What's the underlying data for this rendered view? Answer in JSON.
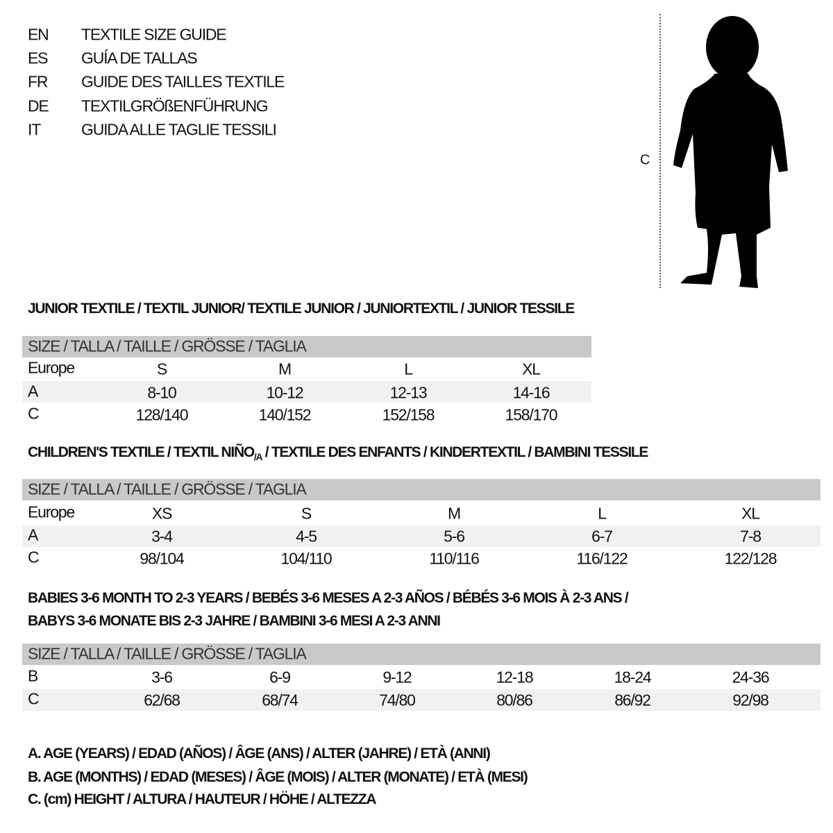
{
  "languages": [
    {
      "code": "EN",
      "title": "TEXTILE SIZE GUIDE"
    },
    {
      "code": "ES",
      "title": "GUÍA DE TALLAS"
    },
    {
      "code": "FR",
      "title": "GUIDE DES TAILLES TEXTILE"
    },
    {
      "code": "DE",
      "title": "TEXTILGRÖßENFÜHRUNG"
    },
    {
      "code": "IT",
      "title": "GUIDA ALLE TAGLIE TESSILI"
    }
  ],
  "figure": {
    "label": "C"
  },
  "junior": {
    "title": "JUNIOR TEXTILE / TEXTIL JUNIOR/ TEXTILE JUNIOR / JUNIORTEXTIL / JUNIOR TESSILE",
    "header": "SIZE / TALLA / TAILLE / GRÖSSE / TAGLIA",
    "rows": [
      {
        "label": "Europe",
        "values": [
          "S",
          "M",
          "L",
          "XL"
        ]
      },
      {
        "label": "A",
        "values": [
          "8-10",
          "10-12",
          "12-13",
          "14-16"
        ]
      },
      {
        "label": "C",
        "values": [
          "128/140",
          "140/152",
          "152/158",
          "158/170"
        ]
      }
    ]
  },
  "children": {
    "title_main": "CHILDREN'S TEXTILE / TEXTIL NIÑO",
    "title_sub": "/A",
    "title_rest": " / TEXTILE DES ENFANTS / KINDERTEXTIL / BAMBINI TESSILE",
    "header": "SIZE / TALLA / TAILLE / GRÖSSE / TAGLIA",
    "rows": [
      {
        "label": "Europe",
        "values": [
          "XS",
          "S",
          "M",
          "L",
          "XL"
        ]
      },
      {
        "label": "A",
        "values": [
          "3-4",
          "4-5",
          "5-6",
          "6-7",
          "7-8"
        ]
      },
      {
        "label": "C",
        "values": [
          "98/104",
          "104/110",
          "110/116",
          "116/122",
          "122/128"
        ]
      }
    ]
  },
  "babies": {
    "title_line1": "BABIES 3-6 MONTH TO 2-3 YEARS / BEBÉS 3-6 MESES A 2-3 AÑOS / BÉBÉS 3-6 MOIS À 2-3 ANS /",
    "title_line2": "BABYS 3-6 MONATE BIS 2-3 JAHRE / BAMBINI 3-6 MESI A 2-3 ANNI",
    "header": "SIZE / TALLA / TAILLE / GRÖSSE / TAGLIA",
    "rows": [
      {
        "label": "B",
        "values": [
          "3-6",
          "6-9",
          "9-12",
          "12-18",
          "18-24",
          "24-36"
        ]
      },
      {
        "label": "C",
        "values": [
          "62/68",
          "68/74",
          "74/80",
          "80/86",
          "86/92",
          "92/98"
        ]
      }
    ]
  },
  "legend": [
    "A. AGE (YEARS) / EDAD (AÑOS) / ÂGE (ANS) / ALTER (JAHRE) / ETÀ (ANNI)",
    "B. AGE (MONTHS) / EDAD (MESES) / ÂGE (MOIS) / ALTER (MONATE) / ETÀ (MESI)",
    "C. (cm) HEIGHT / ALTURA / HAUTEUR / HÖHE / ALTEZZA"
  ],
  "colors": {
    "header_band": "#c9c9c9",
    "row_band": "#f1f1f1"
  }
}
